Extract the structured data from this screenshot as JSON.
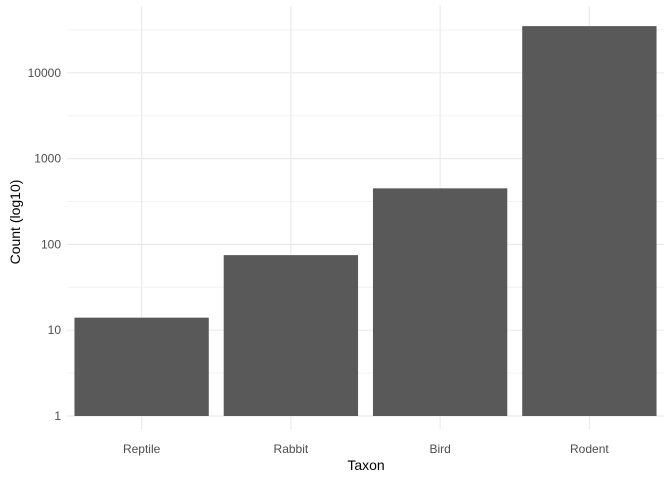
{
  "chart_data": {
    "type": "bar",
    "title": "",
    "xlabel": "Taxon",
    "ylabel": "Count (log10)",
    "y_scale": "log10",
    "ylim": [
      1,
      46000
    ],
    "categories": [
      "Reptile",
      "Rabbit",
      "Bird",
      "Rodent"
    ],
    "values": [
      14,
      75,
      450,
      35000
    ],
    "y_ticks": [
      1,
      10,
      100,
      1000,
      10000
    ],
    "y_tick_labels": [
      "1",
      "10",
      "100",
      "1000",
      "10000"
    ],
    "grid": true,
    "legend": "none",
    "colors": {
      "bar": "#595959",
      "grid_major": "#ebebeb",
      "grid_minor": "#f2f2f2",
      "background": "#ffffff"
    }
  }
}
